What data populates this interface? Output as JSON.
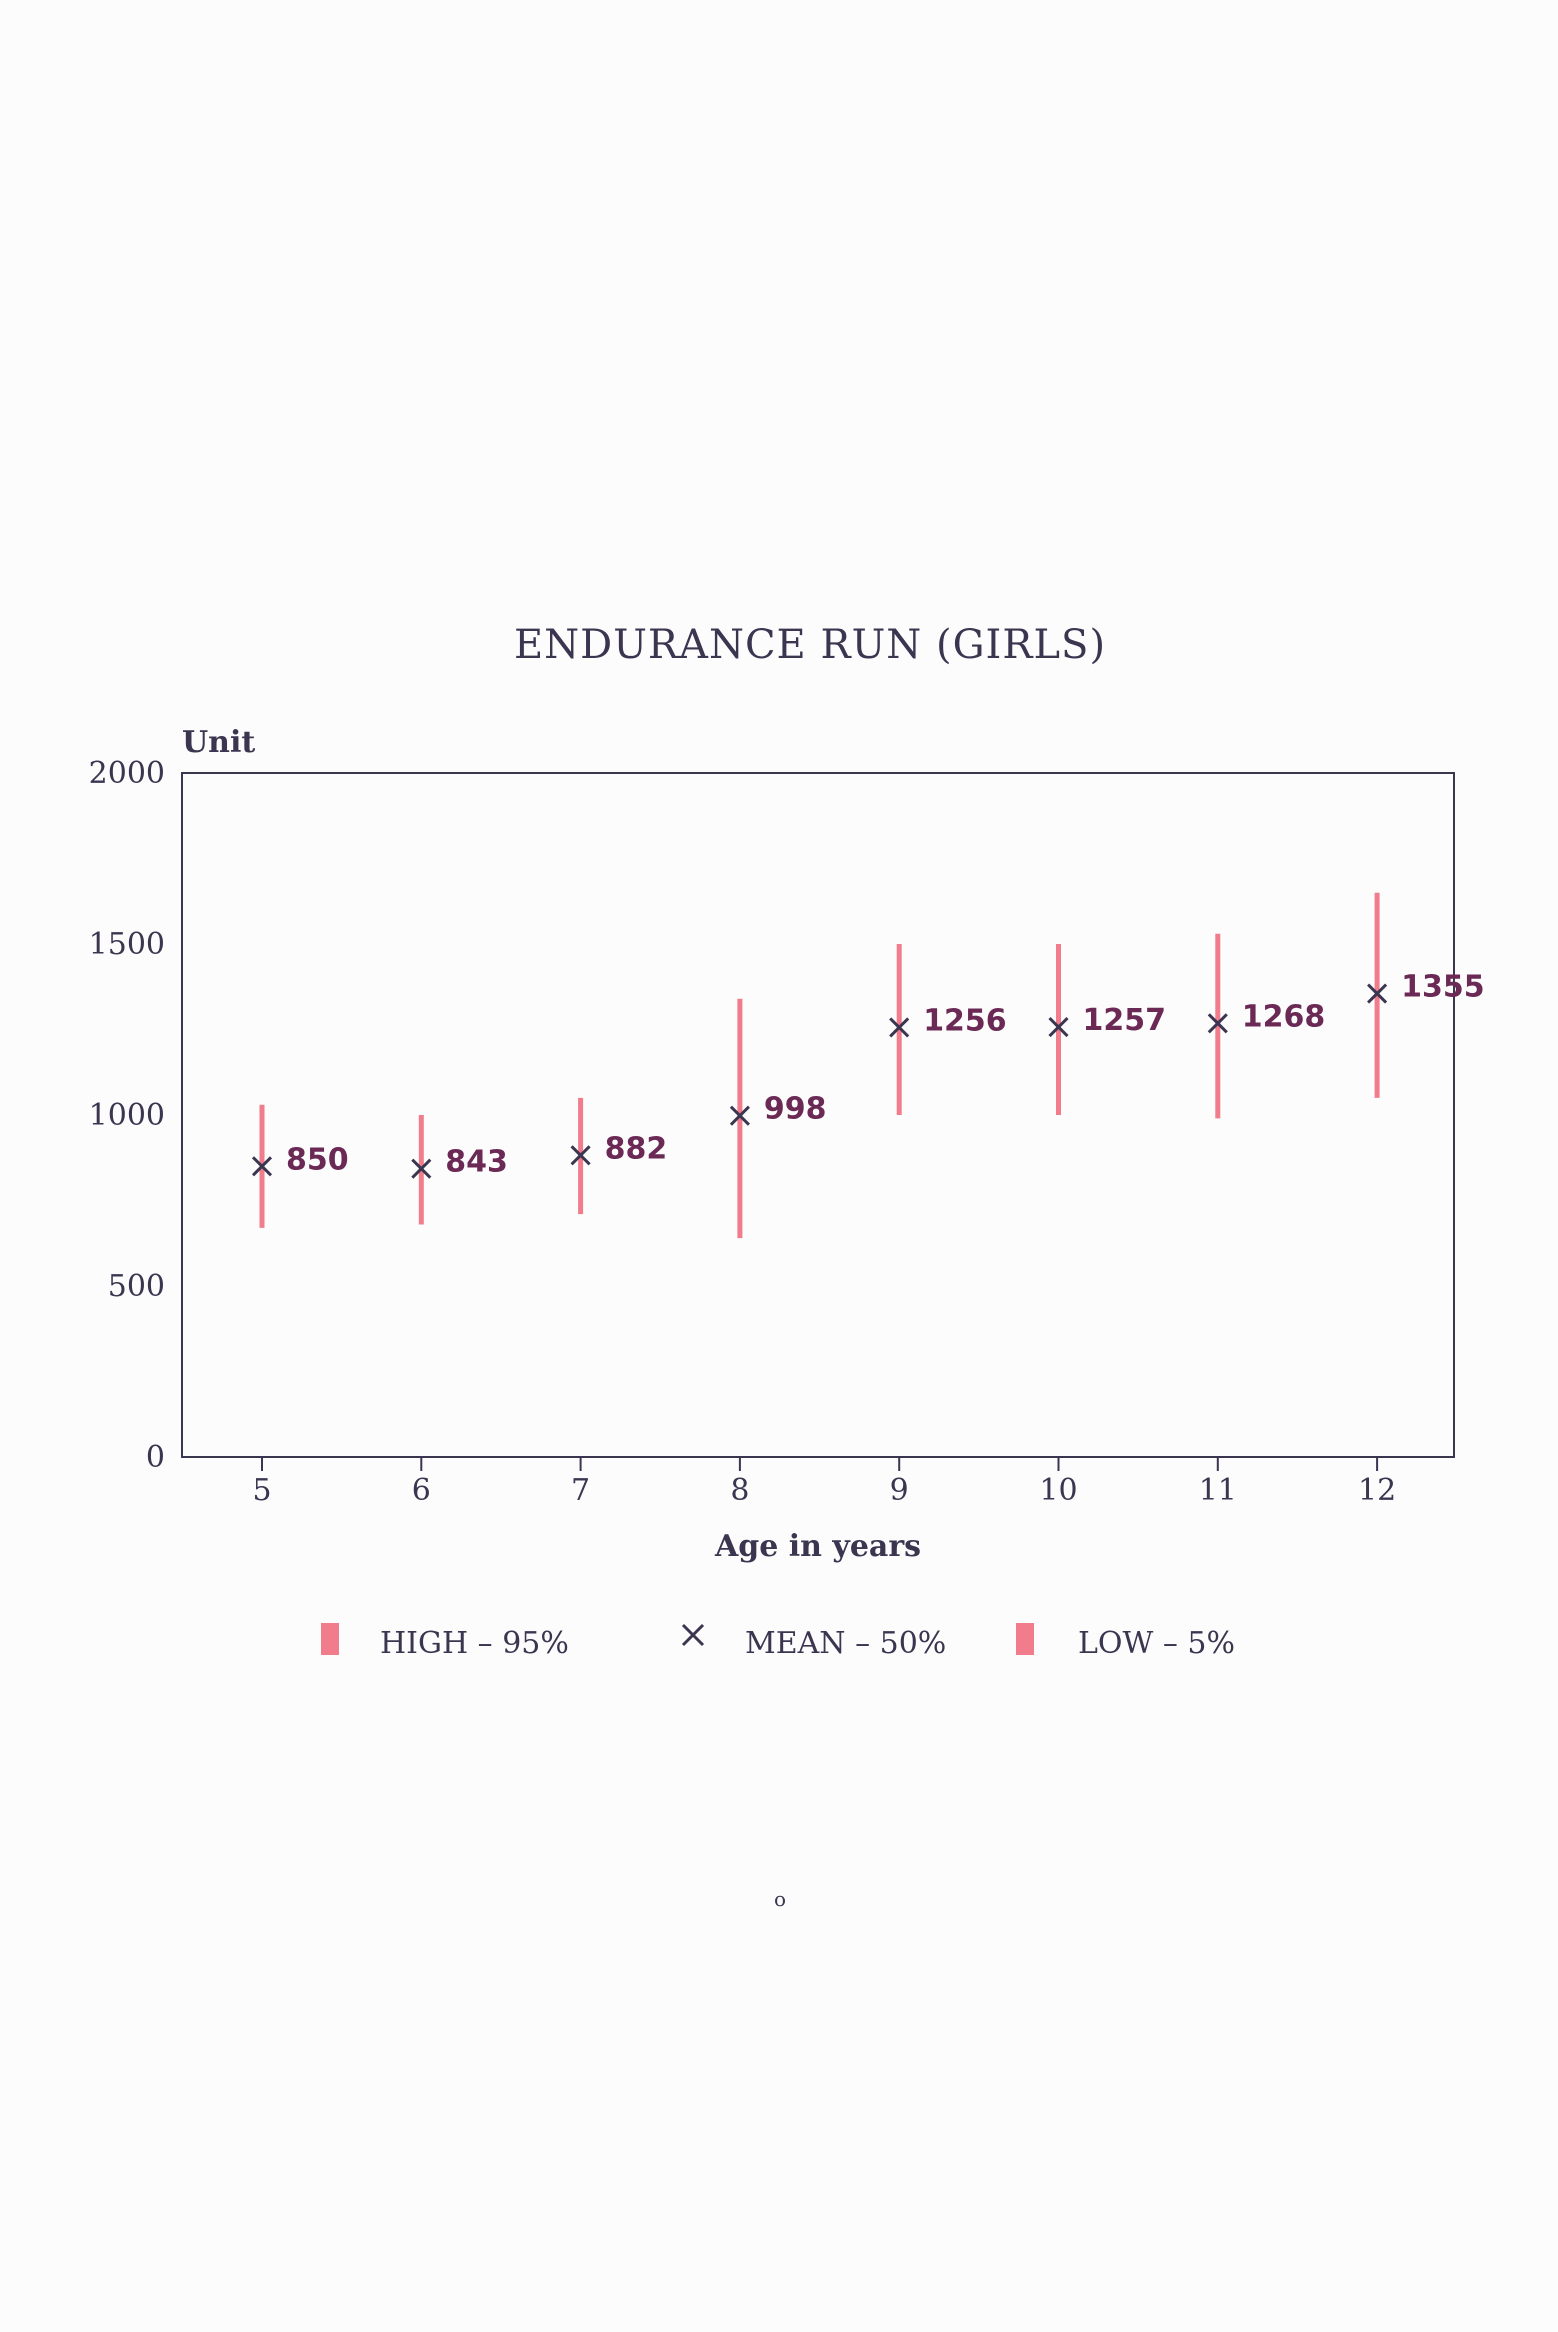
{
  "chart_data": {
    "type": "scatter",
    "title": "ENDURANCE RUN   (GIRLS)",
    "ylabel": "Unit",
    "xlabel": "Age in years",
    "ylim": [
      0,
      2000
    ],
    "yticks": [
      "0",
      "500",
      "1000",
      "1500",
      "2000"
    ],
    "categories": [
      "5",
      "6",
      "7",
      "8",
      "9",
      "10",
      "11",
      "12"
    ],
    "series": [
      {
        "name": "HIGH - 95%",
        "values": [
          1030,
          1000,
          1050,
          1340,
          1500,
          1500,
          1530,
          1650
        ]
      },
      {
        "name": "MEAN - 50%",
        "values": [
          850,
          843,
          882,
          998,
          1256,
          1257,
          1268,
          1355
        ]
      },
      {
        "name": "LOW - 5%",
        "values": [
          670,
          680,
          710,
          640,
          1000,
          1000,
          990,
          1050
        ]
      }
    ],
    "data_labels": [
      "850",
      "843",
      "882",
      "998",
      "1256",
      "1257",
      "1268",
      "1355"
    ],
    "legend": [
      {
        "label": "HIGH  –  95%",
        "marker": "bar"
      },
      {
        "label": "MEAN  –  50%",
        "marker": "x"
      },
      {
        "label": "LOW  –  5%",
        "marker": "bar"
      }
    ],
    "legend_position": "bottom",
    "grid": false
  },
  "page_mark": "o",
  "colors": {
    "range_bar": "#f07c8c",
    "mean_marker": "#3b3550",
    "data_label": "#6b2a55",
    "axis": "#3b3550"
  }
}
